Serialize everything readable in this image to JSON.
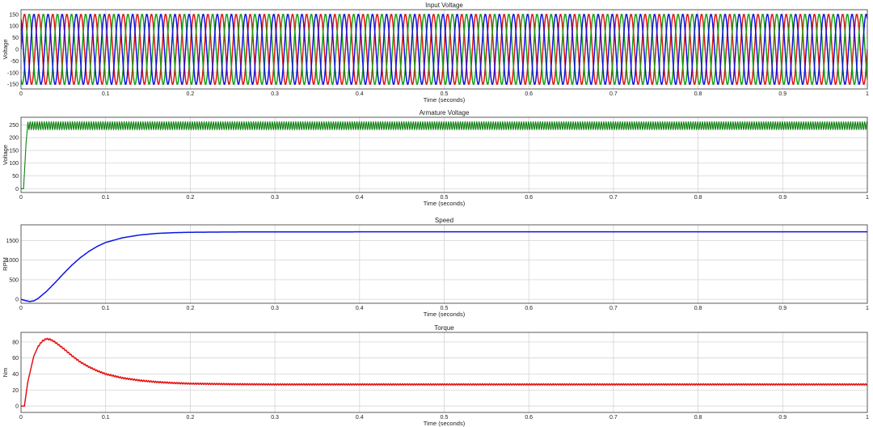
{
  "colors": {
    "background": "#ffffff",
    "axes_frame": "#333333",
    "grid": "#d4d4d4",
    "phase_red": "#e01010",
    "phase_green": "#10a010",
    "phase_blue": "#1010e0",
    "armature": "#108010",
    "speed": "#0a14e8",
    "torque": "#e81010"
  },
  "chart_data": [
    {
      "type": "line",
      "title": "Input Voltage",
      "xlabel": "Time (seconds)",
      "ylabel": "Voltage",
      "xlim": [
        0,
        1
      ],
      "ylim": [
        -170,
        170
      ],
      "grid": true,
      "x_ticks": [
        0,
        0.1,
        0.2,
        0.3,
        0.4,
        0.5,
        0.6,
        0.7,
        0.8,
        0.9,
        1
      ],
      "x_tick_labels": [
        "0",
        "0.1",
        "0.2",
        "0.3",
        "0.4",
        "0.5",
        "0.6",
        "0.7",
        "0.8",
        "0.9",
        "1"
      ],
      "y_ticks": [
        -150,
        -100,
        -50,
        0,
        50,
        100,
        150
      ],
      "y_tick_labels": [
        "-150",
        "-100",
        "-50",
        "0",
        "50",
        "100",
        "150"
      ],
      "signal": "three-phase sinusoid",
      "frequency_hz": 60,
      "series": [
        {
          "amplitude": 150,
          "phase_deg": 0,
          "color": "#e01010"
        },
        {
          "amplitude": 150,
          "phase_deg": -120,
          "color": "#10a010"
        },
        {
          "amplitude": 150,
          "phase_deg": 120,
          "color": "#1010e0"
        }
      ]
    },
    {
      "type": "line",
      "title": "Armature Voltage",
      "xlabel": "Time (seconds)",
      "ylabel": "Voltage",
      "xlim": [
        0,
        1
      ],
      "ylim": [
        -15,
        280
      ],
      "grid": true,
      "x_ticks": [
        0,
        0.1,
        0.2,
        0.3,
        0.4,
        0.5,
        0.6,
        0.7,
        0.8,
        0.9,
        1
      ],
      "x_tick_labels": [
        "0",
        "0.1",
        "0.2",
        "0.3",
        "0.4",
        "0.5",
        "0.6",
        "0.7",
        "0.8",
        "0.9",
        "1"
      ],
      "y_ticks": [
        0,
        50,
        100,
        150,
        200,
        250
      ],
      "y_tick_labels": [
        "0",
        "50",
        "100",
        "150",
        "200",
        "250"
      ],
      "signal": "rectified ripple",
      "points": [
        [
          0,
          0
        ],
        [
          0.003,
          0
        ],
        [
          0.006,
          180
        ],
        [
          0.008,
          255
        ]
      ],
      "ripple_start": 0.008,
      "ripple_min": 232,
      "ripple_max": 262,
      "ripple_frequency_hz": 360,
      "color": "#108010"
    },
    {
      "type": "line",
      "title": "Speed",
      "xlabel": "Time (seconds)",
      "ylabel": "RPM",
      "xlim": [
        0,
        1
      ],
      "ylim": [
        -100,
        1900
      ],
      "grid": true,
      "x_ticks": [
        0,
        0.1,
        0.2,
        0.3,
        0.4,
        0.5,
        0.6,
        0.7,
        0.8,
        0.9,
        1
      ],
      "x_tick_labels": [
        "0",
        "0.1",
        "0.2",
        "0.3",
        "0.4",
        "0.5",
        "0.6",
        "0.7",
        "0.8",
        "0.9",
        "1"
      ],
      "y_ticks": [
        0,
        500,
        1000,
        1500
      ],
      "y_tick_labels": [
        "0",
        "500",
        "1000",
        "1500"
      ],
      "points": [
        [
          0,
          0
        ],
        [
          0.005,
          -30
        ],
        [
          0.01,
          -55
        ],
        [
          0.015,
          -40
        ],
        [
          0.02,
          20
        ],
        [
          0.03,
          200
        ],
        [
          0.04,
          420
        ],
        [
          0.05,
          650
        ],
        [
          0.06,
          870
        ],
        [
          0.07,
          1060
        ],
        [
          0.08,
          1220
        ],
        [
          0.09,
          1350
        ],
        [
          0.1,
          1450
        ],
        [
          0.12,
          1570
        ],
        [
          0.14,
          1640
        ],
        [
          0.16,
          1680
        ],
        [
          0.18,
          1700
        ],
        [
          0.2,
          1710
        ],
        [
          0.25,
          1718
        ],
        [
          0.3,
          1720
        ],
        [
          0.5,
          1722
        ],
        [
          1,
          1722
        ]
      ],
      "color": "#0a14e8"
    },
    {
      "type": "line",
      "title": "Torque",
      "xlabel": "Time (seconds)",
      "ylabel": "Nm",
      "xlim": [
        0,
        1
      ],
      "ylim": [
        -8,
        92
      ],
      "grid": true,
      "x_ticks": [
        0,
        0.1,
        0.2,
        0.3,
        0.4,
        0.5,
        0.6,
        0.7,
        0.8,
        0.9,
        1
      ],
      "x_tick_labels": [
        "0",
        "0.1",
        "0.2",
        "0.3",
        "0.4",
        "0.5",
        "0.6",
        "0.7",
        "0.8",
        "0.9",
        "1"
      ],
      "y_ticks": [
        0,
        20,
        40,
        60,
        80
      ],
      "y_tick_labels": [
        "0",
        "20",
        "40",
        "60",
        "80"
      ],
      "points": [
        [
          0,
          0
        ],
        [
          0.004,
          0
        ],
        [
          0.008,
          30
        ],
        [
          0.015,
          62
        ],
        [
          0.02,
          74
        ],
        [
          0.025,
          81
        ],
        [
          0.03,
          84
        ],
        [
          0.035,
          83
        ],
        [
          0.04,
          80
        ],
        [
          0.05,
          72
        ],
        [
          0.06,
          63
        ],
        [
          0.07,
          55
        ],
        [
          0.08,
          49
        ],
        [
          0.09,
          44
        ],
        [
          0.1,
          40
        ],
        [
          0.12,
          35
        ],
        [
          0.14,
          32
        ],
        [
          0.16,
          30
        ],
        [
          0.18,
          28.8
        ],
        [
          0.2,
          28
        ],
        [
          0.25,
          27.3
        ],
        [
          0.3,
          27
        ],
        [
          1,
          27
        ]
      ],
      "ripple_amplitude": 0.8,
      "ripple_frequency_hz": 360,
      "color": "#e81010"
    }
  ]
}
